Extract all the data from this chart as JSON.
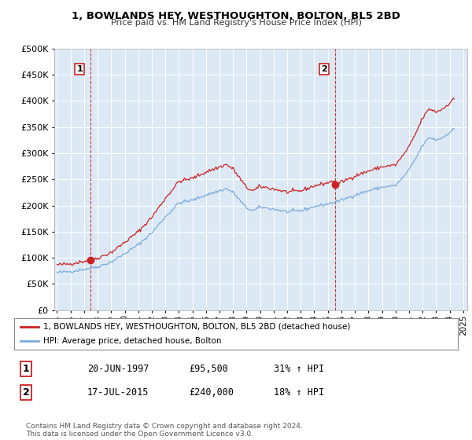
{
  "title": "1, BOWLANDS HEY, WESTHOUGHTON, BOLTON, BL5 2BD",
  "subtitle": "Price paid vs. HM Land Registry's House Price Index (HPI)",
  "ylim": [
    0,
    500000
  ],
  "yticks": [
    0,
    50000,
    100000,
    150000,
    200000,
    250000,
    300000,
    350000,
    400000,
    450000,
    500000
  ],
  "xlim_start": 1994.8,
  "xlim_end": 2025.3,
  "line1_color": "#cc2222",
  "line2_color": "#7aabdc",
  "marker_color": "#cc2222",
  "vline_color": "#cc2222",
  "chart_bg": "#dce9f5",
  "background_color": "#ffffff",
  "grid_color": "#ffffff",
  "sale1_x": 1997.47,
  "sale1_y": 95500,
  "sale2_x": 2015.54,
  "sale2_y": 240000,
  "legend1": "1, BOWLANDS HEY, WESTHOUGHTON, BOLTON, BL5 2BD (detached house)",
  "legend2": "HPI: Average price, detached house, Bolton",
  "table_row1_num": "1",
  "table_row1_date": "20-JUN-1997",
  "table_row1_price": "£95,500",
  "table_row1_hpi": "31% ↑ HPI",
  "table_row2_num": "2",
  "table_row2_date": "17-JUL-2015",
  "table_row2_price": "£240,000",
  "table_row2_hpi": "18% ↑ HPI",
  "footer": "Contains HM Land Registry data © Crown copyright and database right 2024.\nThis data is licensed under the Open Government Licence v3.0."
}
